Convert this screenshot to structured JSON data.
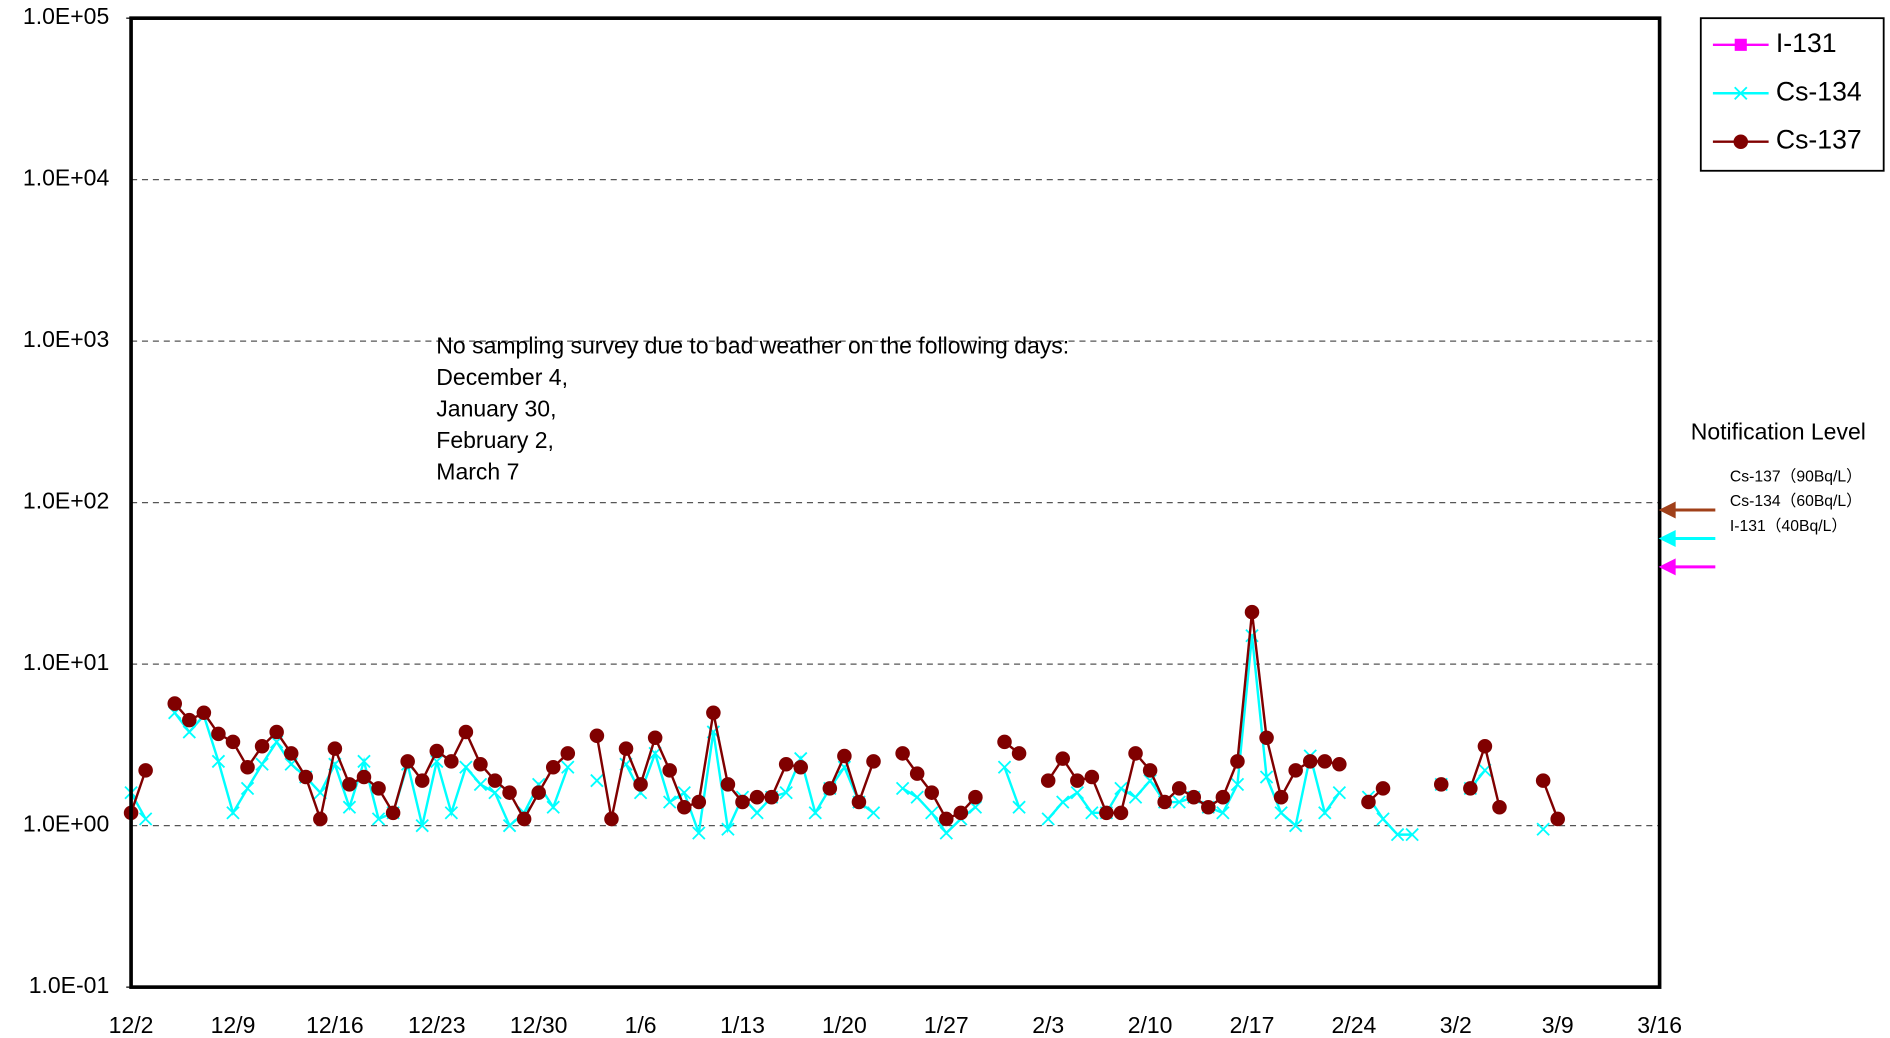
{
  "chart_data": {
    "type": "line",
    "yscale": "log",
    "grid": true,
    "legend": "top-right",
    "annotation": [
      "No sampling survey due to bad weather on the following days:",
      "December 4,",
      "January 30,",
      "February 2,",
      "March 7"
    ],
    "ylim": [
      0.1,
      100000
    ],
    "yticks": [
      {
        "value": 0.1,
        "label": "1.0E-01"
      },
      {
        "value": 1,
        "label": "1.0E+00"
      },
      {
        "value": 10,
        "label": "1.0E+01"
      },
      {
        "value": 100,
        "label": "1.0E+02"
      },
      {
        "value": 1000,
        "label": "1.0E+03"
      },
      {
        "value": 10000,
        "label": "1.0E+04"
      },
      {
        "value": 100000,
        "label": "1.0E+05"
      }
    ],
    "categories": [
      "12/2",
      null,
      null,
      null,
      null,
      null,
      null,
      "12/9",
      null,
      null,
      null,
      null,
      null,
      null,
      "12/16",
      null,
      null,
      null,
      null,
      null,
      null,
      "12/23",
      null,
      null,
      null,
      null,
      null,
      null,
      "12/30",
      null,
      null,
      null,
      null,
      null,
      null,
      "1/6",
      null,
      null,
      null,
      null,
      null,
      null,
      "1/13",
      null,
      null,
      null,
      null,
      null,
      null,
      "1/20",
      null,
      null,
      null,
      null,
      null,
      null,
      "1/27",
      null,
      null,
      null,
      null,
      null,
      null,
      "2/3",
      null,
      null,
      null,
      null,
      null,
      null,
      "2/10",
      null,
      null,
      null,
      null,
      null,
      null,
      "2/17",
      null,
      null,
      null,
      null,
      null,
      null,
      "2/24",
      null,
      null,
      null,
      null,
      null,
      null,
      "3/2",
      null,
      null,
      null,
      null,
      null,
      null,
      "3/9",
      null,
      null,
      null,
      null,
      null,
      null,
      "3/16"
    ],
    "series": [
      {
        "name": "I-131",
        "color": "#ff00ff",
        "marker": "square",
        "values": [
          null,
          null,
          null,
          null,
          null,
          null,
          null,
          null,
          null,
          null,
          null,
          null,
          null,
          null,
          null,
          null,
          null,
          null,
          null,
          null,
          null,
          null,
          null,
          null,
          null,
          null,
          null,
          null,
          null,
          null,
          null,
          null,
          null,
          null,
          null,
          null,
          null,
          null,
          null,
          null,
          null,
          null,
          null,
          null,
          null,
          null,
          null,
          null,
          null,
          null,
          null,
          null,
          null,
          null,
          null,
          null,
          null,
          null,
          null,
          null,
          null,
          null,
          null,
          null,
          null,
          null,
          null,
          null,
          null,
          null,
          null,
          null,
          null,
          null,
          null,
          null,
          null,
          null,
          null,
          null,
          null,
          null,
          null,
          null,
          null,
          null,
          null,
          null,
          null,
          null,
          null,
          null,
          null,
          null,
          null,
          null,
          null,
          null,
          null,
          null,
          null,
          null,
          null,
          null,
          null,
          null
        ]
      },
      {
        "name": "Cs-134",
        "color": "#00ffff",
        "marker": "x",
        "values": [
          1.6,
          1.1,
          null,
          5.0,
          3.8,
          4.8,
          2.5,
          1.2,
          1.7,
          2.4,
          3.3,
          2.4,
          2.0,
          1.6,
          2.4,
          1.3,
          2.5,
          1.1,
          1.2,
          2.4,
          1.0,
          2.5,
          1.2,
          2.3,
          1.8,
          1.6,
          1.0,
          1.2,
          1.8,
          1.3,
          2.3,
          null,
          1.9,
          null,
          2.4,
          1.6,
          2.8,
          1.4,
          1.6,
          0.9,
          3.8,
          0.95,
          1.5,
          1.2,
          1.5,
          1.6,
          2.6,
          1.2,
          1.7,
          2.3,
          1.4,
          1.2,
          null,
          1.7,
          1.5,
          1.2,
          0.9,
          1.1,
          1.3,
          null,
          2.3,
          1.3,
          null,
          1.1,
          1.4,
          1.6,
          1.2,
          1.2,
          1.7,
          1.5,
          1.9,
          1.4,
          1.4,
          1.5,
          1.3,
          1.2,
          1.8,
          15,
          2.0,
          1.2,
          1.0,
          2.7,
          1.2,
          1.6,
          null,
          1.5,
          1.1,
          0.88,
          0.88,
          null,
          1.8,
          null,
          1.7,
          2.2,
          null,
          null,
          null,
          0.95,
          null,
          null,
          null,
          null,
          null,
          null,
          null,
          null
        ]
      },
      {
        "name": "Cs-137",
        "color": "#800000",
        "marker": "circle",
        "values": [
          1.2,
          2.2,
          null,
          5.7,
          4.5,
          5.0,
          3.7,
          3.3,
          2.3,
          3.1,
          3.8,
          2.8,
          2.0,
          1.1,
          3.0,
          1.8,
          2.0,
          1.7,
          1.2,
          2.5,
          1.9,
          2.9,
          2.5,
          3.8,
          2.4,
          1.9,
          1.6,
          1.1,
          1.6,
          2.3,
          2.8,
          null,
          3.6,
          1.1,
          3.0,
          1.8,
          3.5,
          2.2,
          1.3,
          1.4,
          5.0,
          1.8,
          1.4,
          1.5,
          1.5,
          2.4,
          2.3,
          null,
          1.7,
          2.7,
          1.4,
          2.5,
          null,
          2.8,
          2.1,
          1.6,
          1.1,
          1.2,
          1.5,
          null,
          3.3,
          2.8,
          null,
          1.9,
          2.6,
          1.9,
          2.0,
          1.2,
          1.2,
          2.8,
          2.2,
          1.4,
          1.7,
          1.5,
          1.3,
          1.5,
          2.5,
          21,
          3.5,
          1.5,
          2.2,
          2.5,
          2.5,
          2.4,
          null,
          1.4,
          1.7,
          null,
          null,
          null,
          1.8,
          null,
          1.7,
          3.1,
          1.3,
          null,
          null,
          1.9,
          1.1,
          null,
          null,
          null,
          null,
          null,
          null,
          null
        ]
      }
    ],
    "notification": {
      "title": "Notification Level",
      "levels": [
        {
          "label": "Cs-137（90Bq/L）",
          "value": 90,
          "color": "#a0401a"
        },
        {
          "label": "Cs-134（60Bq/L）",
          "value": 60,
          "color": "#00ffff"
        },
        {
          "label": "I-131（40Bq/L）",
          "value": 40,
          "color": "#ff00ff"
        }
      ]
    }
  }
}
